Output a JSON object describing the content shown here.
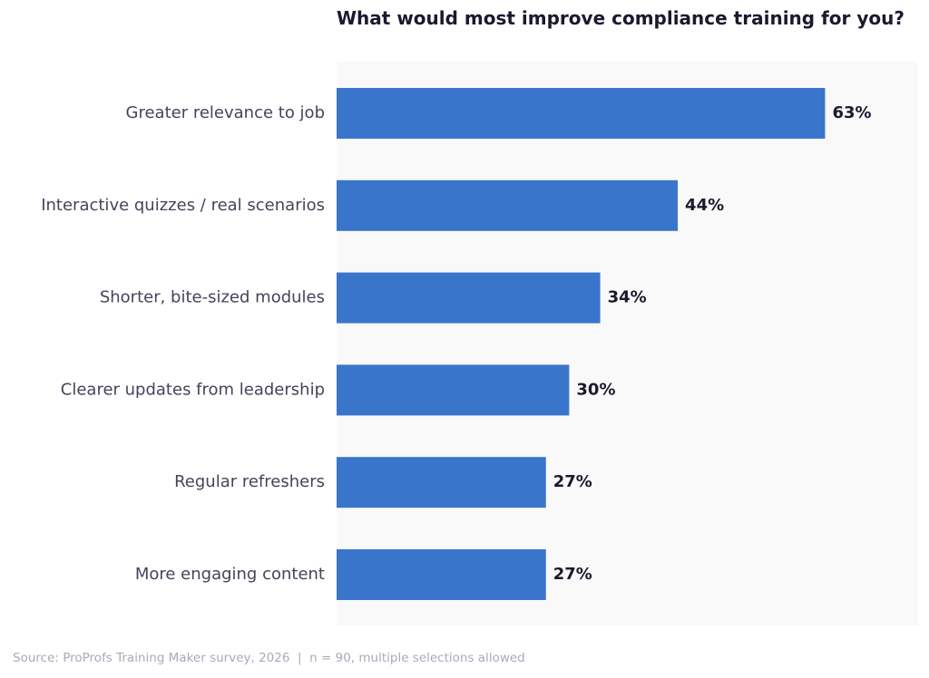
{
  "chart_data": {
    "type": "bar",
    "orientation": "horizontal",
    "title": "What would most improve compliance training for you?",
    "categories": [
      "Greater relevance to job",
      "Interactive quizzes / real scenarios",
      "Shorter, bite-sized modules",
      "Clearer updates from leadership",
      "Regular refreshers",
      "More engaging content"
    ],
    "values": [
      63,
      44,
      34,
      30,
      27,
      27
    ],
    "value_labels": [
      "63%",
      "44%",
      "34%",
      "30%",
      "27%",
      "27%"
    ],
    "color": "#3a75cc",
    "xlim": [
      0,
      75
    ],
    "source": "Source: ProProfs Training Maker survey, 2026  |  n = 90, multiple selections allowed"
  }
}
